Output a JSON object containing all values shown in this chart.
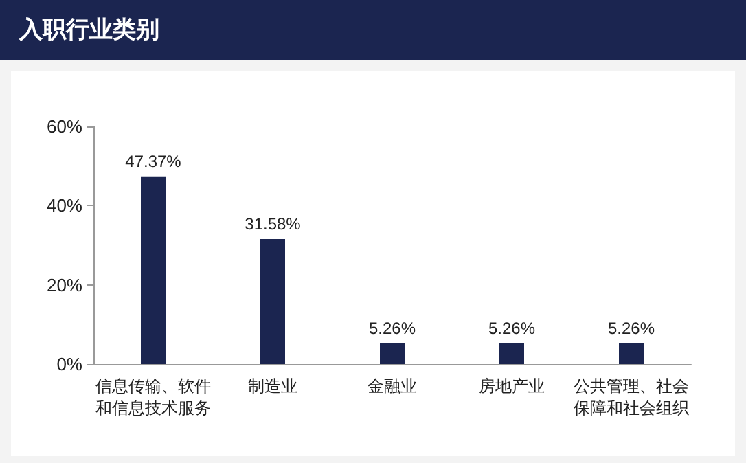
{
  "chart_data": {
    "type": "bar",
    "title": "入职行业类别",
    "categories": [
      "信息传输、软件和信息技术服务",
      "制造业",
      "金融业",
      "房地产业",
      "公共管理、社会保障和社会组织"
    ],
    "values": [
      47.37,
      31.58,
      5.26,
      5.26,
      5.26
    ],
    "value_labels": [
      "47.37%",
      "31.58%",
      "5.26%",
      "5.26%",
      "5.26%"
    ],
    "color": "#1b2550",
    "ylim": [
      0,
      60
    ],
    "yticks": [
      {
        "value": 0,
        "label": "0%"
      },
      {
        "value": 20,
        "label": "20%"
      },
      {
        "value": 40,
        "label": "40%"
      },
      {
        "value": 60,
        "label": "60%"
      }
    ],
    "grid": false
  }
}
